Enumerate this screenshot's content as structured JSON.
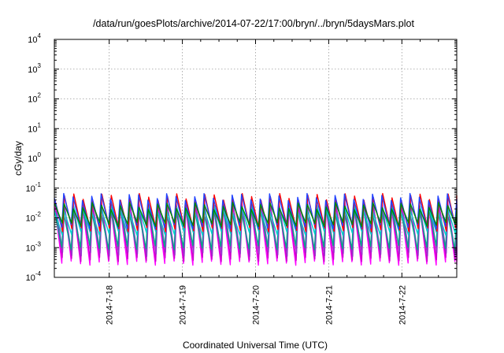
{
  "chart_data": {
    "type": "line",
    "title": "/data/run/goesPlots/archive/2014-07-22/17:00/bryn/../bryn/5daysMars.plot",
    "xlabel": "Coordinated Universal Time (UTC)",
    "ylabel": "cGy/day",
    "yscale": "log",
    "ylim": [
      0.0001,
      10000
    ],
    "y_tick_labels": [
      {
        "base": "10",
        "exp": "-4"
      },
      {
        "base": "10",
        "exp": "-3"
      },
      {
        "base": "10",
        "exp": "-2"
      },
      {
        "base": "10",
        "exp": "-1"
      },
      {
        "base": "10",
        "exp": "0"
      },
      {
        "base": "10",
        "exp": "1"
      },
      {
        "base": "10",
        "exp": "2"
      },
      {
        "base": "10",
        "exp": "3"
      },
      {
        "base": "10",
        "exp": "4"
      }
    ],
    "x_tick_labels": [
      "2014-7-18",
      "2014-7-19",
      "2014-7-20",
      "2014-7-21",
      "2014-7-22"
    ],
    "xlim": [
      "2014-07-17T06:00",
      "2014-07-22T18:00"
    ],
    "grid": true,
    "legend": "none",
    "oscillation_cycles": 43,
    "series": [
      {
        "color": "#ff00ff",
        "peak": 0.035,
        "trough": 0.0003
      },
      {
        "color": "#cc00cc",
        "peak": 0.03,
        "trough": 0.0004
      },
      {
        "color": "#9933cc",
        "peak": 0.03,
        "trough": 0.0006
      },
      {
        "color": "#00aa88",
        "peak": 0.018,
        "trough": 0.001
      },
      {
        "color": "#00cccc",
        "peak": 0.02,
        "trough": 0.003
      },
      {
        "color": "#ff0000",
        "peak": 0.05,
        "trough": 0.004
      },
      {
        "color": "#2244ff",
        "peak": 0.05,
        "trough": 0.005
      },
      {
        "color": "#008800",
        "peak": 0.025,
        "trough": 0.006
      }
    ]
  }
}
